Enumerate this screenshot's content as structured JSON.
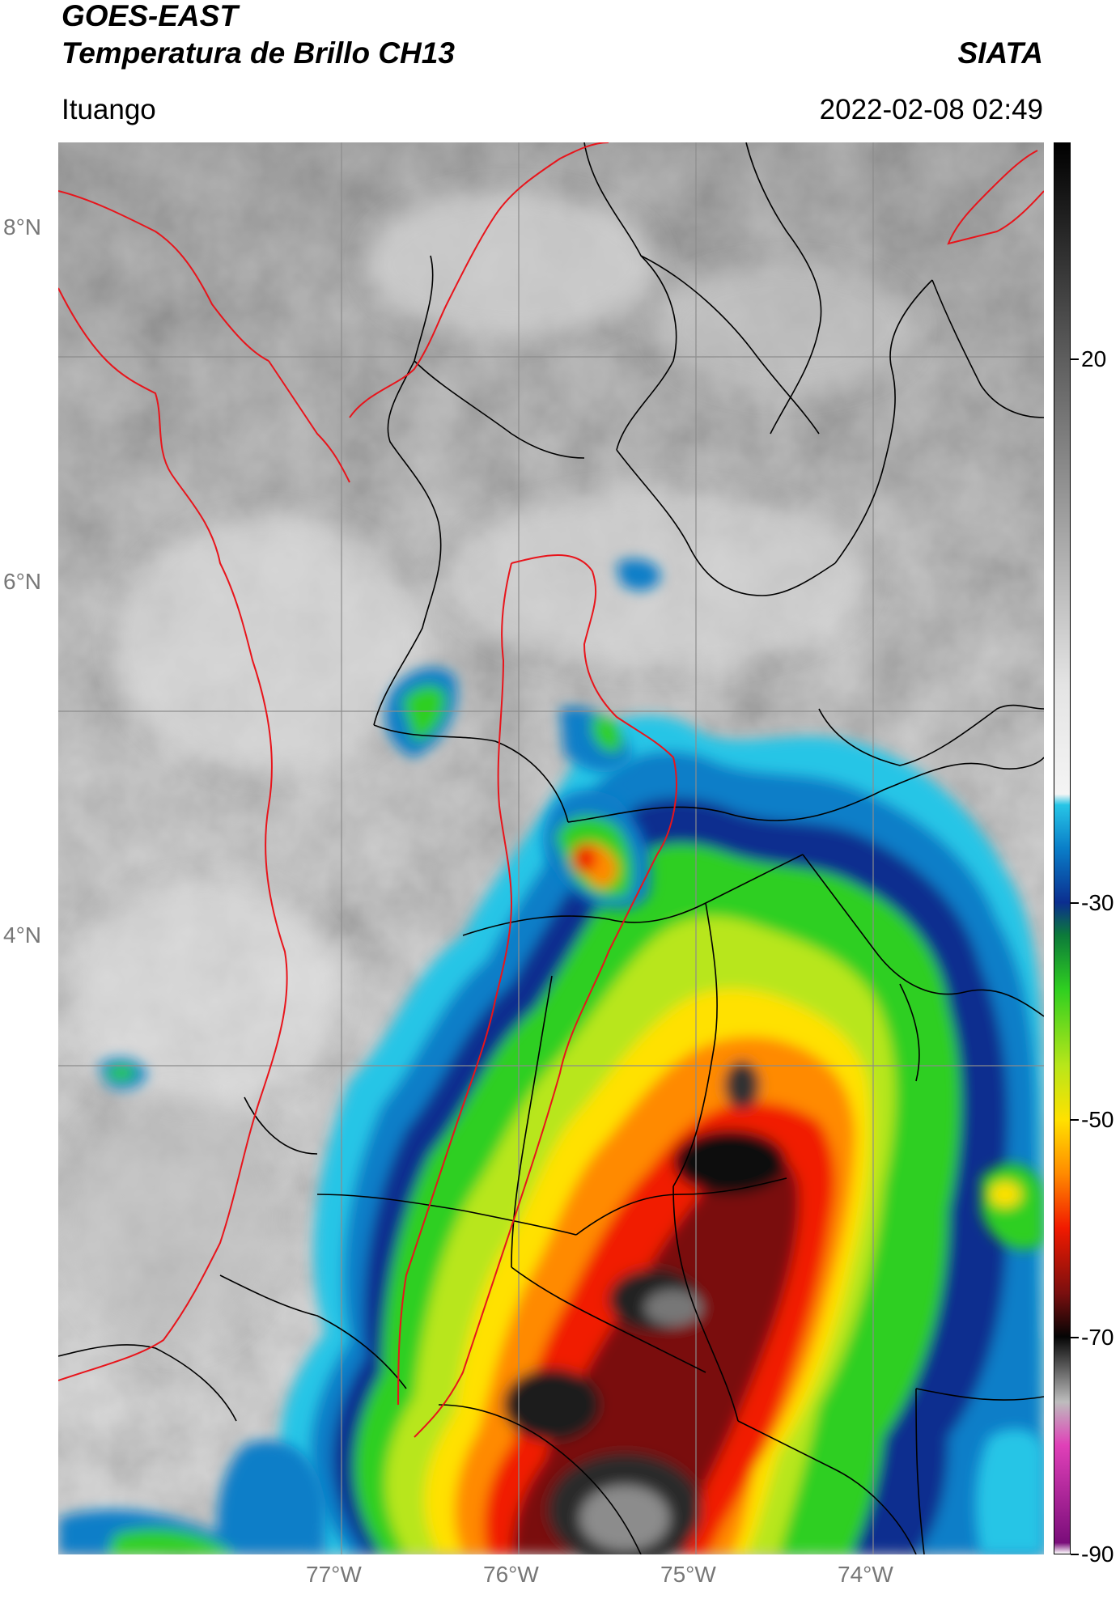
{
  "header": {
    "satellite": "GOES-EAST",
    "product": "Temperatura de Brillo CH13",
    "organization": "SIATA",
    "location": "Ituango",
    "datetime": "2022-02-08 02:49"
  },
  "map": {
    "lat_labels": [
      "8°N",
      "6°N",
      "4°N"
    ],
    "lon_labels": [
      "77°W",
      "76°W",
      "75°W",
      "74°W"
    ],
    "layers": [
      "brightness-temperature-field",
      "department-boundaries",
      "country-boundaries",
      "graticule"
    ],
    "colors": {
      "department_boundary": "#000000",
      "country_boundary": "#e8141b",
      "graticule": "#8c8c8c"
    }
  },
  "colorbar": {
    "labels": [
      "20",
      "-30",
      "-50",
      "-70",
      "-90"
    ],
    "scale_values": [
      20,
      -30,
      -50,
      -70,
      -90
    ],
    "range": [
      -90,
      40
    ],
    "stops": [
      {
        "value": 40,
        "color": "#000000"
      },
      {
        "value": 20,
        "color": "#5e5e5e"
      },
      {
        "value": -10,
        "color": "#e4e4e4"
      },
      {
        "value": -20,
        "color": "#f4f4f4"
      },
      {
        "value": -21,
        "color": "#27c5e6"
      },
      {
        "value": -25,
        "color": "#0a7ec8"
      },
      {
        "value": -30,
        "color": "#0b2e8f"
      },
      {
        "value": -33,
        "color": "#0c7a3a"
      },
      {
        "value": -38,
        "color": "#2fcf20"
      },
      {
        "value": -45,
        "color": "#b8e61a"
      },
      {
        "value": -50,
        "color": "#ffe100"
      },
      {
        "value": -55,
        "color": "#ff8a00"
      },
      {
        "value": -60,
        "color": "#f11a00"
      },
      {
        "value": -66,
        "color": "#7a0f0f"
      },
      {
        "value": -70,
        "color": "#050505"
      },
      {
        "value": -76,
        "color": "#bdbdbd"
      },
      {
        "value": -80,
        "color": "#e040b8"
      },
      {
        "value": -89,
        "color": "#7a0d7a"
      },
      {
        "value": -90,
        "color": "#ffffff"
      }
    ]
  }
}
